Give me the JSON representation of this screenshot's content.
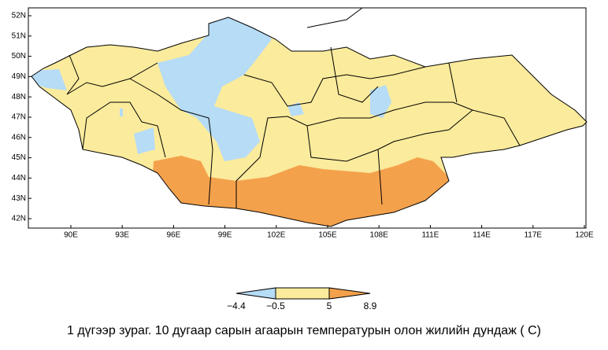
{
  "map": {
    "lat_labels": [
      "52N",
      "51N",
      "50N",
      "49N",
      "48N",
      "47N",
      "46N",
      "45N",
      "44N",
      "43N",
      "42N"
    ],
    "lon_labels": [
      "90E",
      "93E",
      "96E",
      "99E",
      "102E",
      "105E",
      "108E",
      "111E",
      "114E",
      "117E",
      "120E"
    ],
    "colorbar": {
      "labels": [
        "−4.4",
        "−0.5",
        "5",
        "8.9"
      ],
      "colors": [
        "#b6dcf6",
        "#fbeb9c",
        "#f4a14c"
      ]
    }
  },
  "caption": "1 дүгээр зураг. 10 дугаар сарын агаарын температурын олон жилийн дундаж ( C)"
}
